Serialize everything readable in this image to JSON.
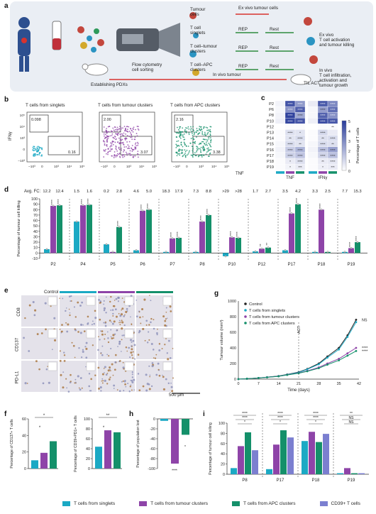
{
  "colors": {
    "singlets": "#1ba9c4",
    "tumour_clusters": "#8e44a8",
    "apc_clusters": "#14906a",
    "cd39": "#7b7fd0",
    "control": "#222222",
    "heat_low": "#ffffff",
    "heat_high": "#283b9a",
    "arrow_green": "#2e8b3e",
    "arrow_red": "#d7332e"
  },
  "panel_labels": {
    "a": "a",
    "b": "b",
    "c": "c",
    "d": "d",
    "e": "e",
    "f": "f",
    "g": "g",
    "h": "h",
    "i": "i"
  },
  "panel_a": {
    "labels": {
      "establishing": "Establishing PDXs",
      "flow": "Flow cytometry\ncell sorting",
      "tumour_cells": "Tumour\ncells",
      "t_singlets": "T cell\nsinglets",
      "t_tumour": "T cell–tumour\nclusters",
      "t_apc": "T cell–APC\nclusters",
      "ex_vivo_tumour": "Ex vivo tumour cells",
      "rep": "REP",
      "rest": "Rest",
      "in_vivo_tumour": "In vivo tumour",
      "til_act": "TIL ACT",
      "ex_vivo_result": "Ex vivo\nT cell activation\nand tumour killing",
      "in_vivo_result": "In vivo\nT cell infiltration,\nactivation and\ntumour growth"
    }
  },
  "panel_b": {
    "titles": [
      "T cells from singlets",
      "T cells from tumour clusters",
      "T cells from APC clusters"
    ],
    "x_axis": "TNF",
    "y_axis": "IFNγ",
    "x_ticks": [
      "−10³",
      "0",
      "10³",
      "10⁴",
      "10⁵"
    ],
    "y_ticks": [
      "10⁵",
      "10⁴",
      "10³",
      "0",
      "−10³"
    ],
    "plots": [
      {
        "top_left": "0.098",
        "bottom_right": "0.16",
        "color": "#1ba9c4"
      },
      {
        "top_left": "2.00",
        "bottom_right": "3.07",
        "color": "#8e44a8"
      },
      {
        "top_left": "2.16",
        "bottom_right": "3.38",
        "color": "#14906a"
      }
    ]
  },
  "panel_c": {
    "rows": [
      "P2",
      "P6",
      "P8",
      "P10",
      "P12",
      "P13",
      "P14",
      "P15",
      "P16",
      "P17",
      "P18",
      "P19"
    ],
    "groups": [
      "TNF",
      "IFNγ"
    ],
    "colorbar_title": "Percentage of T cells",
    "colorbar_ticks": [
      "5",
      "4",
      "3",
      "2",
      "1",
      "0"
    ],
    "values": [
      [
        0.3,
        4.4,
        2.6,
        0.5,
        4.2,
        3.0
      ],
      [
        0.2,
        2.8,
        4.1,
        0.2,
        2.5,
        3.7
      ],
      [
        0.3,
        4.8,
        2.2,
        0.2,
        4.0,
        2.8
      ],
      [
        0.4,
        4.7,
        4.3,
        0.4,
        4.5,
        4.2
      ],
      [
        0.0,
        0.1,
        0.1,
        0.0,
        0.1,
        0.1
      ],
      [
        0.1,
        0.8,
        0.7,
        0.1,
        1.0,
        0.5
      ],
      [
        0.1,
        0.7,
        0.9,
        0.1,
        0.8,
        0.9
      ],
      [
        0.2,
        0.9,
        0.7,
        0.2,
        0.9,
        0.8
      ],
      [
        0.3,
        1.3,
        1.9,
        0.3,
        1.6,
        2.4
      ],
      [
        0.2,
        1.2,
        1.5,
        0.2,
        1.1,
        1.6
      ],
      [
        0.1,
        0.5,
        0.8,
        0.1,
        0.5,
        0.6
      ],
      [
        0.1,
        0.3,
        0.5,
        0.1,
        0.4,
        0.5
      ]
    ],
    "sig": [
      [
        "",
        "****",
        "****",
        "",
        "****",
        "****"
      ],
      [
        "",
        "****",
        "****",
        "",
        "****",
        "****"
      ],
      [
        "",
        "****",
        "****",
        "",
        "****",
        "****"
      ],
      [
        "",
        "****",
        "****",
        "",
        "****",
        "****"
      ],
      [
        "",
        "",
        "",
        "",
        "",
        "**"
      ],
      [
        "",
        "****",
        "*",
        "",
        "****",
        ""
      ],
      [
        "",
        "**",
        "****",
        "",
        "**",
        "****"
      ],
      [
        "",
        "****",
        "**",
        "",
        "****",
        "**"
      ],
      [
        "",
        "****",
        "****",
        "",
        "****",
        "****"
      ],
      [
        "",
        "****",
        "****",
        "",
        "****",
        "****"
      ],
      [
        "",
        "*",
        "****",
        "",
        "**",
        "****"
      ],
      [
        "",
        "*",
        "***",
        "",
        "*",
        "***"
      ]
    ]
  },
  "chart_data": [
    {
      "type": "bar",
      "panel": "d",
      "ylabel": "Percentage of tumour cell killing",
      "ylim": [
        -10,
        100
      ],
      "yticks": [
        -10,
        0,
        10,
        20,
        30,
        40,
        50,
        60,
        70,
        80,
        90,
        100
      ],
      "categories": [
        "P2",
        "P4",
        "P5",
        "P6",
        "P7",
        "P8",
        "P10",
        "P12",
        "P17",
        "P18",
        "P19"
      ],
      "avg_fc_label": "Avg. FC:",
      "avg_fc": [
        [
          "12.2",
          "12.4"
        ],
        [
          "1.5",
          "1.6"
        ],
        [
          "0.2",
          "2.8"
        ],
        [
          "4.6",
          "5.0"
        ],
        [
          "18.3",
          "17.9"
        ],
        [
          "7.3",
          "8.8"
        ],
        [
          ">29",
          ">28"
        ],
        [
          "1.7",
          "2.7"
        ],
        [
          "3.5",
          "4.2"
        ],
        [
          "3.3",
          "2.5"
        ],
        [
          "7.7",
          "15.3"
        ]
      ],
      "series": [
        {
          "name": "T cells from singlets",
          "values": [
            7,
            58,
            16,
            5,
            2,
            2,
            -6,
            3,
            5,
            2,
            2
          ]
        },
        {
          "name": "T cells from tumour clusters",
          "values": [
            87,
            88,
            2,
            78,
            27,
            58,
            29,
            8,
            73,
            80,
            9
          ]
        },
        {
          "name": "T cells from APC clusters",
          "values": [
            88,
            89,
            48,
            80,
            28,
            70,
            28,
            10,
            90,
            2,
            20
          ]
        }
      ],
      "sig": [
        [
          "****",
          "****"
        ],
        [
          "****",
          "****"
        ],
        [
          "",
          "****"
        ],
        [
          "****",
          "****"
        ],
        [
          "****",
          "****"
        ],
        [
          "****",
          "****"
        ],
        [
          "****",
          "****"
        ],
        [
          "**",
          "**"
        ],
        [
          "****",
          "****"
        ],
        [
          "****",
          ""
        ],
        [
          "****",
          "****"
        ]
      ]
    },
    {
      "type": "line",
      "panel": "g",
      "ylabel": "Tumour volume (mm³)",
      "xlabel": "Time (days)",
      "ylim": [
        0,
        1000
      ],
      "yticks": [
        0,
        200,
        400,
        600,
        800,
        1000
      ],
      "xticks": [
        0,
        7,
        14,
        21,
        28,
        35,
        42
      ],
      "annotation": "ACT",
      "x": [
        0,
        3,
        7,
        10,
        14,
        17,
        21,
        24,
        28,
        31,
        35,
        38,
        41
      ],
      "series": [
        {
          "name": "Control",
          "values": [
            0,
            5,
            15,
            25,
            40,
            60,
            90,
            130,
            200,
            290,
            400,
            560,
            760
          ],
          "end_label": "NS"
        },
        {
          "name": "T cells from singlets",
          "values": [
            0,
            5,
            15,
            25,
            38,
            58,
            85,
            125,
            190,
            275,
            380,
            540,
            730
          ]
        },
        {
          "name": "T cells from tumour clusters",
          "values": [
            0,
            5,
            14,
            24,
            36,
            55,
            78,
            105,
            150,
            200,
            260,
            330,
            400
          ],
          "end_label": "****"
        },
        {
          "name": "T cells from APC clusters",
          "values": [
            0,
            5,
            14,
            23,
            35,
            53,
            75,
            100,
            140,
            185,
            240,
            300,
            360
          ],
          "end_label": "****"
        }
      ]
    },
    {
      "type": "bar",
      "panel": "f-left",
      "ylabel": "Percentage of CD137+ T cells",
      "ylim": [
        0,
        60
      ],
      "yticks": [
        0,
        20,
        40,
        60
      ],
      "series": [
        {
          "name": "T cells from singlets",
          "values": [
            10
          ]
        },
        {
          "name": "T cells from tumour clusters",
          "values": [
            19
          ]
        },
        {
          "name": "T cells from APC clusters",
          "values": [
            33
          ]
        }
      ],
      "sig": [
        "*",
        "*"
      ]
    },
    {
      "type": "bar",
      "panel": "f-right",
      "ylabel": "Percentage of CD39+PD1+ T cells",
      "ylim": [
        0,
        100
      ],
      "yticks": [
        0,
        20,
        40,
        60,
        80,
        100
      ],
      "series": [
        {
          "name": "T cells from singlets",
          "values": [
            44
          ]
        },
        {
          "name": "T cells from tumour clusters",
          "values": [
            77
          ]
        },
        {
          "name": "T cells from APC clusters",
          "values": [
            73
          ]
        }
      ],
      "sig": [
        "*",
        "**"
      ]
    },
    {
      "type": "bar",
      "panel": "h",
      "ylabel": "Percentage of population lost",
      "ylim": [
        -100,
        0
      ],
      "yticks": [
        -100,
        -80,
        -60,
        -40,
        -20,
        0
      ],
      "series": [
        {
          "name": "T cells from singlets",
          "values": [
            -4
          ]
        },
        {
          "name": "T cells from tumour clusters",
          "values": [
            -90
          ]
        },
        {
          "name": "T cells from APC clusters",
          "values": [
            -32
          ]
        }
      ],
      "sig": [
        "****",
        "*"
      ]
    },
    {
      "type": "bar",
      "panel": "i",
      "ylabel": "Percentage of tumour cell killing",
      "ylim": [
        0,
        100
      ],
      "yticks": [
        0,
        20,
        40,
        60,
        80,
        100
      ],
      "categories": [
        "P8",
        "P17",
        "P18",
        "P19"
      ],
      "series": [
        {
          "name": "T cells from singlets",
          "values": [
            12,
            10,
            65,
            2
          ]
        },
        {
          "name": "T cells from tumour clusters",
          "values": [
            55,
            58,
            83,
            12
          ]
        },
        {
          "name": "T cells from APC clusters",
          "values": [
            82,
            86,
            63,
            2
          ]
        },
        {
          "name": "CD39+ T cells",
          "values": [
            47,
            72,
            79,
            2
          ]
        }
      ],
      "sig_labels": [
        "*",
        "****",
        "****",
        "**",
        "NS",
        "NS"
      ]
    }
  ],
  "panel_e": {
    "columns": [
      "Control",
      "",
      "",
      ""
    ],
    "rows": [
      "CD8",
      "CD137",
      "PD-L1"
    ],
    "scale_bar": "500 μm"
  },
  "legend": [
    {
      "label": "T cells from singlets",
      "color": "#1ba9c4"
    },
    {
      "label": "T cells from tumour clusters",
      "color": "#8e44a8"
    },
    {
      "label": "T cells from APC clusters",
      "color": "#14906a"
    },
    {
      "label": "CD39+ T cells",
      "color": "#7b7fd0"
    }
  ]
}
